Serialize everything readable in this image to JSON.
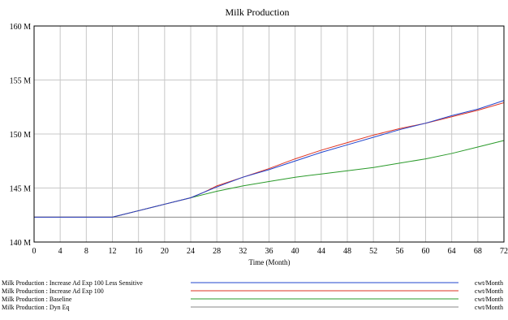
{
  "chart_data": {
    "type": "line",
    "title": "Milk Production",
    "xlabel": "Time (Month)",
    "ylabel": "",
    "xlim": [
      0,
      72
    ],
    "ylim": [
      140,
      160
    ],
    "x_ticks": [
      "0",
      "4",
      "8",
      "12",
      "16",
      "20",
      "24",
      "28",
      "32",
      "36",
      "40",
      "44",
      "48",
      "52",
      "56",
      "60",
      "64",
      "68",
      "72"
    ],
    "y_ticks": [
      {
        "value": 160,
        "label": "160 M"
      },
      {
        "value": 155,
        "label": "155 M"
      },
      {
        "value": 150,
        "label": "150 M"
      },
      {
        "value": 145,
        "label": "145 M"
      },
      {
        "value": 140,
        "label": "140 M"
      }
    ],
    "grid": true,
    "legend_position": "bottom",
    "series": [
      {
        "name": "Milk Production : Increase Ad Exp 100 Less Sensitive",
        "unit": "cwt/Month",
        "color": "#2244cc",
        "x": [
          0,
          4,
          8,
          12,
          16,
          20,
          24,
          26,
          28,
          32,
          36,
          40,
          44,
          48,
          52,
          56,
          60,
          64,
          68,
          72
        ],
        "y": [
          142.3,
          142.3,
          142.3,
          142.3,
          142.9,
          143.5,
          144.1,
          144.6,
          145.1,
          146.0,
          146.7,
          147.5,
          148.3,
          149.0,
          149.7,
          150.4,
          151.0,
          151.7,
          152.3,
          153.1
        ]
      },
      {
        "name": "Milk Production : Increase Ad Exp 100",
        "unit": "cwt/Month",
        "color": "#dd3322",
        "x": [
          0,
          4,
          8,
          12,
          16,
          20,
          24,
          26,
          28,
          32,
          36,
          40,
          44,
          48,
          52,
          56,
          60,
          64,
          68,
          72
        ],
        "y": [
          142.3,
          142.3,
          142.3,
          142.3,
          142.9,
          143.5,
          144.1,
          144.6,
          145.2,
          146.0,
          146.8,
          147.7,
          148.5,
          149.2,
          149.9,
          150.5,
          151.0,
          151.6,
          152.2,
          152.9
        ]
      },
      {
        "name": "Milk Production : Baseline",
        "unit": "cwt/Month",
        "color": "#2a9a2a",
        "x": [
          0,
          4,
          8,
          12,
          16,
          20,
          24,
          28,
          32,
          36,
          40,
          44,
          48,
          52,
          56,
          60,
          64,
          68,
          72
        ],
        "y": [
          142.3,
          142.3,
          142.3,
          142.3,
          142.9,
          143.5,
          144.1,
          144.7,
          145.2,
          145.6,
          146.0,
          146.3,
          146.6,
          146.9,
          147.3,
          147.7,
          148.2,
          148.8,
          149.4
        ]
      },
      {
        "name": "Milk Production : Dyn Eq",
        "unit": "cwt/Month",
        "color": "#8a8a8a",
        "x": [
          0,
          72
        ],
        "y": [
          142.3,
          142.3
        ]
      }
    ]
  }
}
